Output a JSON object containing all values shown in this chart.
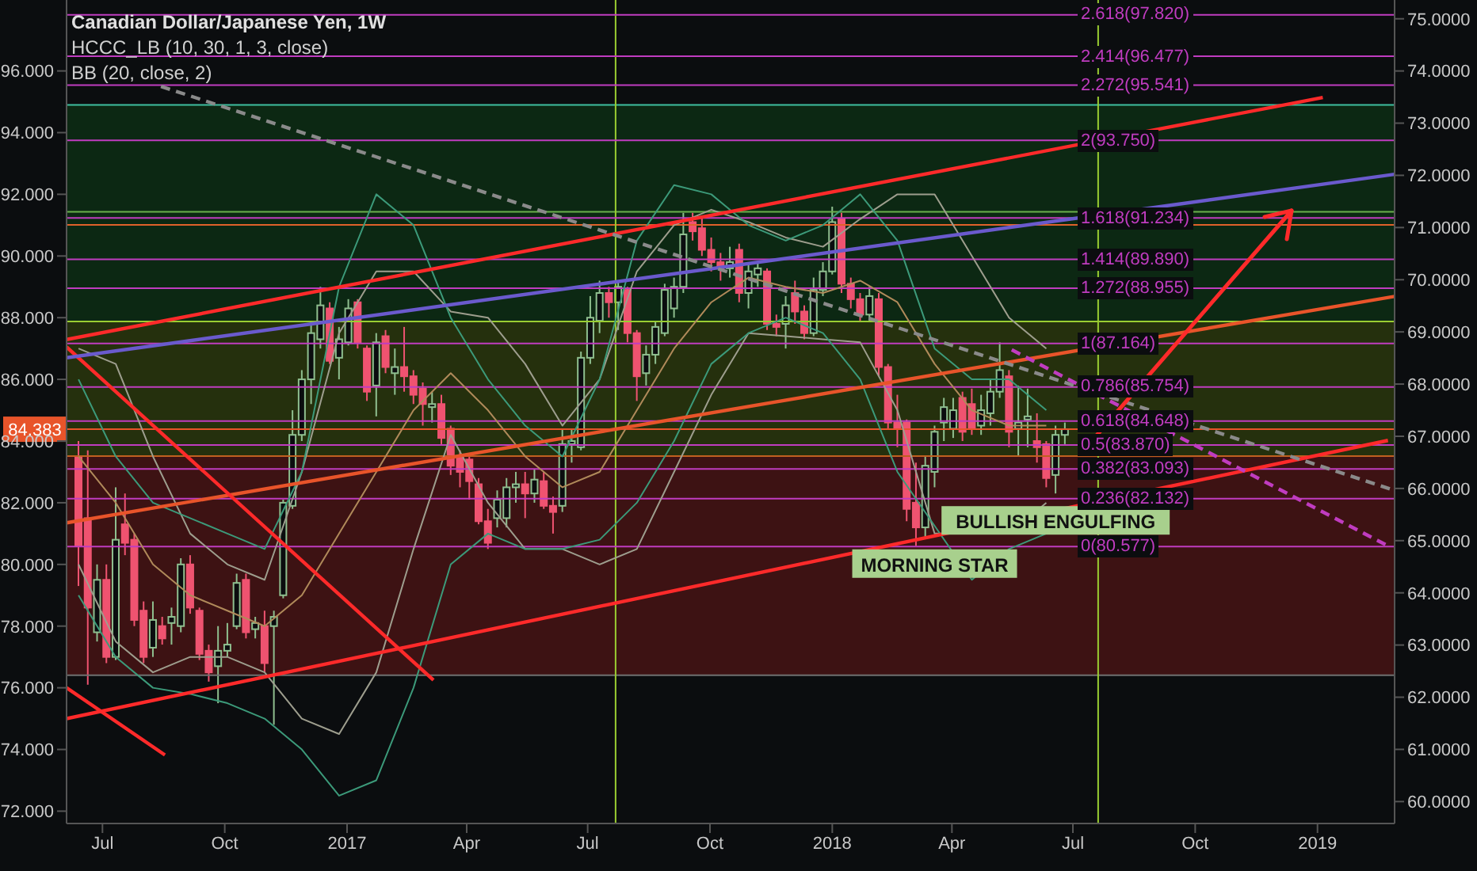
{
  "chart_data": {
    "type": "candlestick",
    "title": "Canadian Dollar/Japanese Yen, 1W",
    "x": [
      "2016-06-13",
      "2016-06-20",
      "2016-06-27",
      "2016-07-04",
      "2016-07-11",
      "2016-07-18",
      "2016-07-25",
      "2016-08-01",
      "2016-08-08",
      "2016-08-15",
      "2016-08-22",
      "2016-08-29",
      "2016-09-05",
      "2016-09-12",
      "2016-09-19",
      "2016-09-26",
      "2016-10-03",
      "2016-10-10",
      "2016-10-17",
      "2016-10-24",
      "2016-10-31",
      "2016-11-07",
      "2016-11-14",
      "2016-11-21",
      "2016-11-28",
      "2016-12-05",
      "2016-12-12",
      "2016-12-19",
      "2016-12-26",
      "2017-01-02",
      "2017-01-09",
      "2017-01-16",
      "2017-01-23",
      "2017-01-30",
      "2017-02-06",
      "2017-02-13",
      "2017-02-20",
      "2017-02-27",
      "2017-03-06",
      "2017-03-13",
      "2017-03-20",
      "2017-03-27",
      "2017-04-03",
      "2017-04-10",
      "2017-04-17",
      "2017-04-24",
      "2017-05-01",
      "2017-05-08",
      "2017-05-15",
      "2017-05-22",
      "2017-05-29",
      "2017-06-05",
      "2017-06-12",
      "2017-06-19",
      "2017-06-26",
      "2017-07-03",
      "2017-07-10",
      "2017-07-17",
      "2017-07-24",
      "2017-07-31",
      "2017-08-07",
      "2017-08-14",
      "2017-08-21",
      "2017-08-28",
      "2017-09-04",
      "2017-09-11",
      "2017-09-18",
      "2017-09-25",
      "2017-10-02",
      "2017-10-09",
      "2017-10-16",
      "2017-10-23",
      "2017-10-30",
      "2017-11-06",
      "2017-11-13",
      "2017-11-20",
      "2017-11-27",
      "2017-12-04",
      "2017-12-11",
      "2017-12-18",
      "2017-12-25",
      "2018-01-01",
      "2018-01-08",
      "2018-01-15",
      "2018-01-22",
      "2018-01-29",
      "2018-02-05",
      "2018-02-12",
      "2018-02-19",
      "2018-02-26",
      "2018-03-05",
      "2018-03-12",
      "2018-03-19",
      "2018-03-26",
      "2018-04-02",
      "2018-04-09",
      "2018-04-16",
      "2018-04-23",
      "2018-04-30",
      "2018-05-07",
      "2018-05-14",
      "2018-05-21",
      "2018-05-28",
      "2018-06-04",
      "2018-06-11",
      "2018-06-18",
      "2018-06-25"
    ],
    "ohlc": [
      [
        83.5,
        84.0,
        79.3,
        80.6
      ],
      [
        81.5,
        83.7,
        76.1,
        78.6
      ],
      [
        77.8,
        80.0,
        77.5,
        79.5
      ],
      [
        79.5,
        80.0,
        76.8,
        77.0
      ],
      [
        77.0,
        82.5,
        76.9,
        80.8
      ],
      [
        81.3,
        82.3,
        80.3,
        80.7
      ],
      [
        80.8,
        81.0,
        78.0,
        78.2
      ],
      [
        78.5,
        78.8,
        76.8,
        77.0
      ],
      [
        77.3,
        78.8,
        77.0,
        78.2
      ],
      [
        78.0,
        78.3,
        77.4,
        77.6
      ],
      [
        78.1,
        78.6,
        77.4,
        78.3
      ],
      [
        78.0,
        80.2,
        77.8,
        80.0
      ],
      [
        80.0,
        80.3,
        78.4,
        78.6
      ],
      [
        78.5,
        78.6,
        76.9,
        77.1
      ],
      [
        77.2,
        77.4,
        76.2,
        76.5
      ],
      [
        76.7,
        78.0,
        75.5,
        77.2
      ],
      [
        77.2,
        78.1,
        77.0,
        77.4
      ],
      [
        78.0,
        79.7,
        77.9,
        79.4
      ],
      [
        79.5,
        79.7,
        77.6,
        77.8
      ],
      [
        77.9,
        78.3,
        77.6,
        78.1
      ],
      [
        78.0,
        78.5,
        76.5,
        76.8
      ],
      [
        78.0,
        78.5,
        74.8,
        78.3
      ],
      [
        79.0,
        82.1,
        78.9,
        82.0
      ],
      [
        81.9,
        85.0,
        81.8,
        84.2
      ],
      [
        84.2,
        86.3,
        84.0,
        86.0
      ],
      [
        86.0,
        87.8,
        85.2,
        87.5
      ],
      [
        87.3,
        89.0,
        87.0,
        88.4
      ],
      [
        88.3,
        88.5,
        86.5,
        86.6
      ],
      [
        86.7,
        87.7,
        86.0,
        87.3
      ],
      [
        87.2,
        88.6,
        87.1,
        88.3
      ],
      [
        88.5,
        88.6,
        87.0,
        87.2
      ],
      [
        87.0,
        87.1,
        85.3,
        85.6
      ],
      [
        85.8,
        87.5,
        84.8,
        87.2
      ],
      [
        87.4,
        87.6,
        86.2,
        86.4
      ],
      [
        86.2,
        87.0,
        85.5,
        86.4
      ],
      [
        86.4,
        87.7,
        85.6,
        86.1
      ],
      [
        86.1,
        86.3,
        85.2,
        85.5
      ],
      [
        85.7,
        85.9,
        84.5,
        85.2
      ],
      [
        85.1,
        85.6,
        84.6,
        85.2
      ],
      [
        85.2,
        85.5,
        83.9,
        84.1
      ],
      [
        84.4,
        84.5,
        82.9,
        83.2
      ],
      [
        83.5,
        83.7,
        82.5,
        83.0
      ],
      [
        83.4,
        83.6,
        82.1,
        82.7
      ],
      [
        82.6,
        82.8,
        81.3,
        81.4
      ],
      [
        81.4,
        81.8,
        80.5,
        80.7
      ],
      [
        81.5,
        82.4,
        81.2,
        82.1
      ],
      [
        81.5,
        82.8,
        81.2,
        82.5
      ],
      [
        82.5,
        83.0,
        82.0,
        82.6
      ],
      [
        82.6,
        83.0,
        81.5,
        82.3
      ],
      [
        82.3,
        83.1,
        82.0,
        82.75
      ],
      [
        82.7,
        83.0,
        81.8,
        81.9
      ],
      [
        81.9,
        82.2,
        81.0,
        81.7
      ],
      [
        81.9,
        84.4,
        81.7,
        83.9
      ],
      [
        83.9,
        84.4,
        83.3,
        84.0
      ],
      [
        83.8,
        86.9,
        83.7,
        86.7
      ],
      [
        86.7,
        88.7,
        86.5,
        88.0
      ],
      [
        87.9,
        89.2,
        87.5,
        88.8
      ],
      [
        88.8,
        89.0,
        88.0,
        88.5
      ],
      [
        88.5,
        89.2,
        87.6,
        89.0
      ],
      [
        88.9,
        89.0,
        87.2,
        87.5
      ],
      [
        87.5,
        87.6,
        85.3,
        86.1
      ],
      [
        86.2,
        87.1,
        85.8,
        86.8
      ],
      [
        86.8,
        87.9,
        86.5,
        87.7
      ],
      [
        87.5,
        89.1,
        87.4,
        88.9
      ],
      [
        88.3,
        89.3,
        88.0,
        89.0
      ],
      [
        89.0,
        91.4,
        88.8,
        90.7
      ],
      [
        91.1,
        91.4,
        90.5,
        90.8
      ],
      [
        90.9,
        91.3,
        90.0,
        90.2
      ],
      [
        90.2,
        90.6,
        89.5,
        89.8
      ],
      [
        89.8,
        90.1,
        89.2,
        89.6
      ],
      [
        89.6,
        90.3,
        89.3,
        89.8
      ],
      [
        90.2,
        90.4,
        88.5,
        88.8
      ],
      [
        88.8,
        89.7,
        88.3,
        89.5
      ],
      [
        89.4,
        89.8,
        89.0,
        89.6
      ],
      [
        89.5,
        89.6,
        87.6,
        87.8
      ],
      [
        87.8,
        88.1,
        87.4,
        87.7
      ],
      [
        87.8,
        88.7,
        87.0,
        88.4
      ],
      [
        88.8,
        89.2,
        87.8,
        88.2
      ],
      [
        88.2,
        88.4,
        87.3,
        87.5
      ],
      [
        87.5,
        89.3,
        87.4,
        88.9
      ],
      [
        88.9,
        89.8,
        88.7,
        89.5
      ],
      [
        89.5,
        91.6,
        89.4,
        91.1
      ],
      [
        91.2,
        91.4,
        88.8,
        89.1
      ],
      [
        89.1,
        89.3,
        88.3,
        88.6
      ],
      [
        88.6,
        88.8,
        87.9,
        88.1
      ],
      [
        88.1,
        89.0,
        87.9,
        88.7
      ],
      [
        88.6,
        88.8,
        86.1,
        86.4
      ],
      [
        86.4,
        86.5,
        84.4,
        84.6
      ],
      [
        84.6,
        85.5,
        83.8,
        84.4
      ],
      [
        84.6,
        84.7,
        81.4,
        81.8
      ],
      [
        82.0,
        83.3,
        80.6,
        81.2
      ],
      [
        81.2,
        83.5,
        80.9,
        83.2
      ],
      [
        83.0,
        84.5,
        82.5,
        84.3
      ],
      [
        84.6,
        85.4,
        84.0,
        85.1
      ],
      [
        84.4,
        85.4,
        84.1,
        85.0
      ],
      [
        85.4,
        85.6,
        84.0,
        84.3
      ],
      [
        85.2,
        85.7,
        84.2,
        84.4
      ],
      [
        84.5,
        85.5,
        84.2,
        85.0
      ],
      [
        84.9,
        86.0,
        84.5,
        85.6
      ],
      [
        85.6,
        87.2,
        85.4,
        86.3
      ],
      [
        86.1,
        86.3,
        83.8,
        84.3
      ],
      [
        84.4,
        85.8,
        83.5,
        84.6
      ],
      [
        84.7,
        85.7,
        83.8,
        84.8
      ],
      [
        84.0,
        84.9,
        83.3,
        83.8
      ],
      [
        83.9,
        84.0,
        82.5,
        82.8
      ],
      [
        82.9,
        84.5,
        82.3,
        84.2
      ],
      [
        84.2,
        84.6,
        83.9,
        84.383
      ]
    ],
    "series": [
      {
        "type": "line",
        "color": "#9e9e8e",
        "x": [
          "2016-06-13",
          "2016-07-11",
          "2016-08-08",
          "2016-09-05",
          "2016-10-03",
          "2016-10-31",
          "2016-11-28",
          "2016-12-26",
          "2017-01-23",
          "2017-02-20",
          "2017-03-20",
          "2017-04-17",
          "2017-05-15",
          "2017-06-12",
          "2017-07-10",
          "2017-08-07",
          "2017-09-04",
          "2017-10-02",
          "2017-10-30",
          "2017-11-27",
          "2017-12-25",
          "2018-01-22",
          "2018-02-19",
          "2018-03-19",
          "2018-04-16",
          "2018-05-14",
          "2018-06-11"
        ],
        "values": [
          87,
          86.5,
          83.5,
          81,
          80,
          79.5,
          83,
          87.5,
          89.5,
          89.5,
          88.2,
          88,
          86.5,
          84.5,
          86,
          89.5,
          91,
          91.5,
          91.1,
          90.6,
          90.3,
          91.2,
          92,
          92,
          90,
          88,
          87
        ]
      },
      {
        "type": "line",
        "color": "#b08a5a",
        "x": [
          "2016-06-13",
          "2016-07-11",
          "2016-08-08",
          "2016-09-05",
          "2016-10-03",
          "2016-10-31",
          "2016-11-28",
          "2016-12-26",
          "2017-01-23",
          "2017-02-20",
          "2017-03-20",
          "2017-04-17",
          "2017-05-15",
          "2017-06-12",
          "2017-07-10",
          "2017-08-07",
          "2017-09-04",
          "2017-10-02",
          "2017-10-30",
          "2017-11-27",
          "2017-12-25",
          "2018-01-22",
          "2018-02-19",
          "2018-03-19",
          "2018-04-16",
          "2018-05-14",
          "2018-06-11"
        ],
        "values": [
          83.5,
          82,
          80,
          79,
          78.5,
          78,
          79,
          81,
          83,
          85,
          86.2,
          85,
          83.5,
          82.5,
          83,
          85,
          87,
          88.5,
          89.3,
          89.0,
          88.8,
          89.2,
          88.5,
          86.5,
          85,
          84.5,
          84.5
        ]
      },
      {
        "type": "line",
        "color": "#9e9e8e",
        "x": [
          "2016-06-13",
          "2016-07-11",
          "2016-08-08",
          "2016-09-05",
          "2016-10-03",
          "2016-10-31",
          "2016-11-28",
          "2016-12-26",
          "2017-01-23",
          "2017-02-20",
          "2017-03-20",
          "2017-04-17",
          "2017-05-15",
          "2017-06-12",
          "2017-07-10",
          "2017-08-07",
          "2017-09-04",
          "2017-10-02",
          "2017-10-30",
          "2017-11-27",
          "2017-12-25",
          "2018-01-22",
          "2018-02-19",
          "2018-03-19",
          "2018-04-16",
          "2018-05-14",
          "2018-06-11"
        ],
        "values": [
          80,
          77.5,
          76.5,
          77,
          77,
          76.5,
          75,
          74.5,
          76.5,
          80.5,
          84.2,
          82,
          80.5,
          80.5,
          80,
          80.5,
          83,
          85.5,
          87.5,
          87.4,
          87.3,
          87.2,
          85,
          81,
          null,
          81,
          82
        ]
      },
      {
        "type": "line",
        "color": "#3c9a7a",
        "x": [
          "2016-06-13",
          "2016-07-11",
          "2016-08-08",
          "2016-09-05",
          "2016-10-03",
          "2016-10-31",
          "2016-11-28",
          "2016-12-26",
          "2017-01-23",
          "2017-02-20",
          "2017-03-20",
          "2017-04-17",
          "2017-05-15",
          "2017-06-12",
          "2017-07-10",
          "2017-08-07",
          "2017-09-04",
          "2017-10-02",
          "2017-10-30",
          "2017-11-27",
          "2017-12-25",
          "2018-01-22",
          "2018-02-19",
          "2018-03-19",
          "2018-04-16",
          "2018-05-14",
          "2018-06-11"
        ],
        "values": [
          86,
          83.5,
          82,
          81.5,
          81,
          80.5,
          83,
          89,
          92,
          91,
          88,
          86,
          84.5,
          83.5,
          86,
          90.5,
          92.3,
          92,
          91,
          90.5,
          91,
          92,
          90.5,
          87,
          86,
          86,
          85
        ]
      },
      {
        "type": "line",
        "color": "#3c9a7a",
        "x": [
          "2016-06-13",
          "2016-07-11",
          "2016-08-08",
          "2016-09-05",
          "2016-10-03",
          "2016-10-31",
          "2016-11-28",
          "2016-12-26",
          "2017-01-23",
          "2017-02-20",
          "2017-03-20",
          "2017-04-17",
          "2017-05-15",
          "2017-06-12",
          "2017-07-10",
          "2017-08-07",
          "2017-09-04",
          "2017-10-02",
          "2017-10-30",
          "2017-11-27",
          "2017-12-25",
          "2018-01-22",
          "2018-02-19",
          "2018-03-19",
          "2018-04-16",
          "2018-05-14",
          "2018-06-11"
        ],
        "values": [
          79,
          77,
          76,
          75.8,
          75.5,
          75,
          74,
          72.5,
          73,
          76,
          80,
          81,
          80.5,
          80.5,
          80.8,
          82,
          84,
          86.5,
          87.5,
          88,
          87.5,
          86,
          83,
          null,
          79.5,
          80.5,
          81
        ]
      },
      {
        "type": "line",
        "color": "#ff2a2a",
        "x": [
          "2016-06-04",
          "2019-01-05"
        ],
        "values": [
          87.29,
          95.14
        ]
      },
      {
        "type": "line",
        "color": "#ff2a2a",
        "x": [
          "2016-06-04",
          "2019-02-23"
        ],
        "values": [
          75.0,
          84.02
        ]
      },
      {
        "type": "line",
        "color": "#e8542a",
        "x": [
          "2016-06-04",
          "2019-02-28"
        ],
        "values": [
          81.35,
          88.69
        ]
      },
      {
        "type": "line",
        "color": "#ff2a2a",
        "x": [
          "2016-06-04",
          "2017-03-07"
        ],
        "values": [
          87.05,
          76.25
        ]
      },
      {
        "type": "line",
        "color": "#ff2a2a",
        "x": [
          "2016-06-04",
          "2016-08-17"
        ],
        "values": [
          76.0,
          73.82
        ]
      },
      {
        "type": "line",
        "color": "#6a5acd",
        "x": [
          "2016-06-04",
          "2019-02-28"
        ],
        "values": [
          86.7,
          92.65
        ]
      },
      {
        "type": "line",
        "color": "#8a8a8a",
        "line_style": "dashed",
        "x": [
          "2016-08-14",
          "2019-02-28"
        ],
        "values": [
          95.5,
          82.4
        ]
      },
      {
        "type": "line",
        "color": "#c03cc0",
        "line_style": "dashed",
        "x": [
          "2018-05-16",
          "2019-02-23"
        ],
        "values": [
          86.96,
          80.6
        ]
      }
    ],
    "xlim": [
      "2016-06-04",
      "2019-02-28"
    ],
    "xticks": [
      {
        "value": "2016-07-01",
        "label": "Jul"
      },
      {
        "value": "2016-10-01",
        "label": "Oct"
      },
      {
        "value": "2017-01-01",
        "label": "2017"
      },
      {
        "value": "2017-04-01",
        "label": "Apr"
      },
      {
        "value": "2017-07-01",
        "label": "Jul"
      },
      {
        "value": "2017-10-01",
        "label": "Oct"
      },
      {
        "value": "2018-01-01",
        "label": "2018"
      },
      {
        "value": "2018-04-01",
        "label": "Apr"
      },
      {
        "value": "2018-07-01",
        "label": "Jul"
      },
      {
        "value": "2018-10-01",
        "label": "Oct"
      },
      {
        "value": "2019-01-01",
        "label": "2019"
      }
    ],
    "ylim": [
      71.6,
      98.3
    ],
    "yticks": [
      {
        "value": 72,
        "label": "72.000"
      },
      {
        "value": 74,
        "label": "74.000"
      },
      {
        "value": 76,
        "label": "76.000"
      },
      {
        "value": 78,
        "label": "78.000"
      },
      {
        "value": 80,
        "label": "80.000"
      },
      {
        "value": 82,
        "label": "82.000"
      },
      {
        "value": 84,
        "label": "84.000"
      },
      {
        "value": 86,
        "label": "86.000"
      },
      {
        "value": 88,
        "label": "88.000"
      },
      {
        "value": 90,
        "label": "90.000"
      },
      {
        "value": 92,
        "label": "92.000"
      },
      {
        "value": 94,
        "label": "94.000"
      },
      {
        "value": 96,
        "label": "96.000"
      }
    ],
    "y2lim": [
      59.58,
      75.36
    ],
    "y2ticks": [
      {
        "value": 60,
        "label": "60.0000"
      },
      {
        "value": 61,
        "label": "61.0000"
      },
      {
        "value": 62,
        "label": "62.0000"
      },
      {
        "value": 63,
        "label": "63.0000"
      },
      {
        "value": 64,
        "label": "64.0000"
      },
      {
        "value": 65,
        "label": "65.0000"
      },
      {
        "value": 66,
        "label": "66.0000"
      },
      {
        "value": 67,
        "label": "67.0000"
      },
      {
        "value": 68,
        "label": "68.0000"
      },
      {
        "value": 69,
        "label": "69.0000"
      },
      {
        "value": 70,
        "label": "70.0000"
      },
      {
        "value": 71,
        "label": "71.0000"
      },
      {
        "value": 72,
        "label": "72.0000"
      },
      {
        "value": 73,
        "label": "73.0000"
      },
      {
        "value": 74,
        "label": "74.0000"
      },
      {
        "value": 75,
        "label": "75.0000"
      }
    ],
    "bands": [
      {
        "axis": "y2",
        "from": 62.42,
        "to": 66.62,
        "color": "#4a1414"
      },
      {
        "axis": "y2",
        "from": 66.62,
        "to": 69.2,
        "color": "#2c3a0c"
      },
      {
        "axis": "y2",
        "from": 69.2,
        "to": 73.35,
        "color": "#0c3014"
      }
    ],
    "ref_lines": [
      {
        "axis": "y2",
        "value": 73.35,
        "color": "#3fbfa0"
      },
      {
        "axis": "y2",
        "value": 71.3,
        "color": "#6ab04c"
      },
      {
        "axis": "y2",
        "value": 71.05,
        "color": "#e0622a"
      },
      {
        "axis": "y2",
        "value": 69.2,
        "color": "#9acd32"
      },
      {
        "axis": "y2",
        "value": 66.62,
        "color": "#c06020"
      },
      {
        "axis": "y2",
        "value": 62.42,
        "color": "#707070"
      },
      {
        "axis": "y",
        "value": 84.383,
        "label": "84.383",
        "color": "#e8542a"
      },
      {
        "axis": "x",
        "value": "2017-07-22",
        "color": "#9acd32"
      },
      {
        "axis": "x",
        "value": "2018-07-20",
        "color": "#9acd32"
      },
      {
        "axis": "y",
        "value": 97.82,
        "label": "2.618(97.820)",
        "color": "#c03cc0"
      },
      {
        "axis": "y",
        "value": 96.477,
        "label": "2.414(96.477)",
        "color": "#c03cc0"
      },
      {
        "axis": "y",
        "value": 95.541,
        "label": "2.272(95.541)",
        "color": "#c03cc0"
      },
      {
        "axis": "y",
        "value": 93.75,
        "label": "2(93.750)",
        "color": "#c03cc0"
      },
      {
        "axis": "y",
        "value": 91.234,
        "label": "1.618(91.234)",
        "color": "#c03cc0"
      },
      {
        "axis": "y",
        "value": 89.89,
        "label": "1.414(89.890)",
        "color": "#c03cc0"
      },
      {
        "axis": "y",
        "value": 88.955,
        "label": "1.272(88.955)",
        "color": "#c03cc0"
      },
      {
        "axis": "y",
        "value": 87.164,
        "label": "1(87.164)",
        "color": "#c03cc0"
      },
      {
        "axis": "y",
        "value": 85.754,
        "label": "0.786(85.754)",
        "color": "#c03cc0"
      },
      {
        "axis": "y",
        "value": 84.648,
        "label": "0.618(84.648)",
        "color": "#c03cc0"
      },
      {
        "axis": "y",
        "value": 83.87,
        "label": "0.5(83.870)",
        "color": "#c03cc0"
      },
      {
        "axis": "y",
        "value": 83.093,
        "label": "0.382(83.093)",
        "color": "#c03cc0"
      },
      {
        "axis": "y",
        "value": 82.132,
        "label": "0.236(82.132)",
        "color": "#c03cc0"
      },
      {
        "axis": "y",
        "value": 80.577,
        "label": "0(80.577)",
        "color": "#c03cc0"
      }
    ],
    "annotations": [
      "HCCC_LB (10, 30, 1, 3, close)",
      "BB (20, close, 2)",
      {
        "text": "MORNING STAR",
        "x": "2018-03-19",
        "y": 80.9
      },
      {
        "text": "BULLISH ENGULFING",
        "x": "2018-06-18",
        "y": 82.3
      }
    ]
  }
}
